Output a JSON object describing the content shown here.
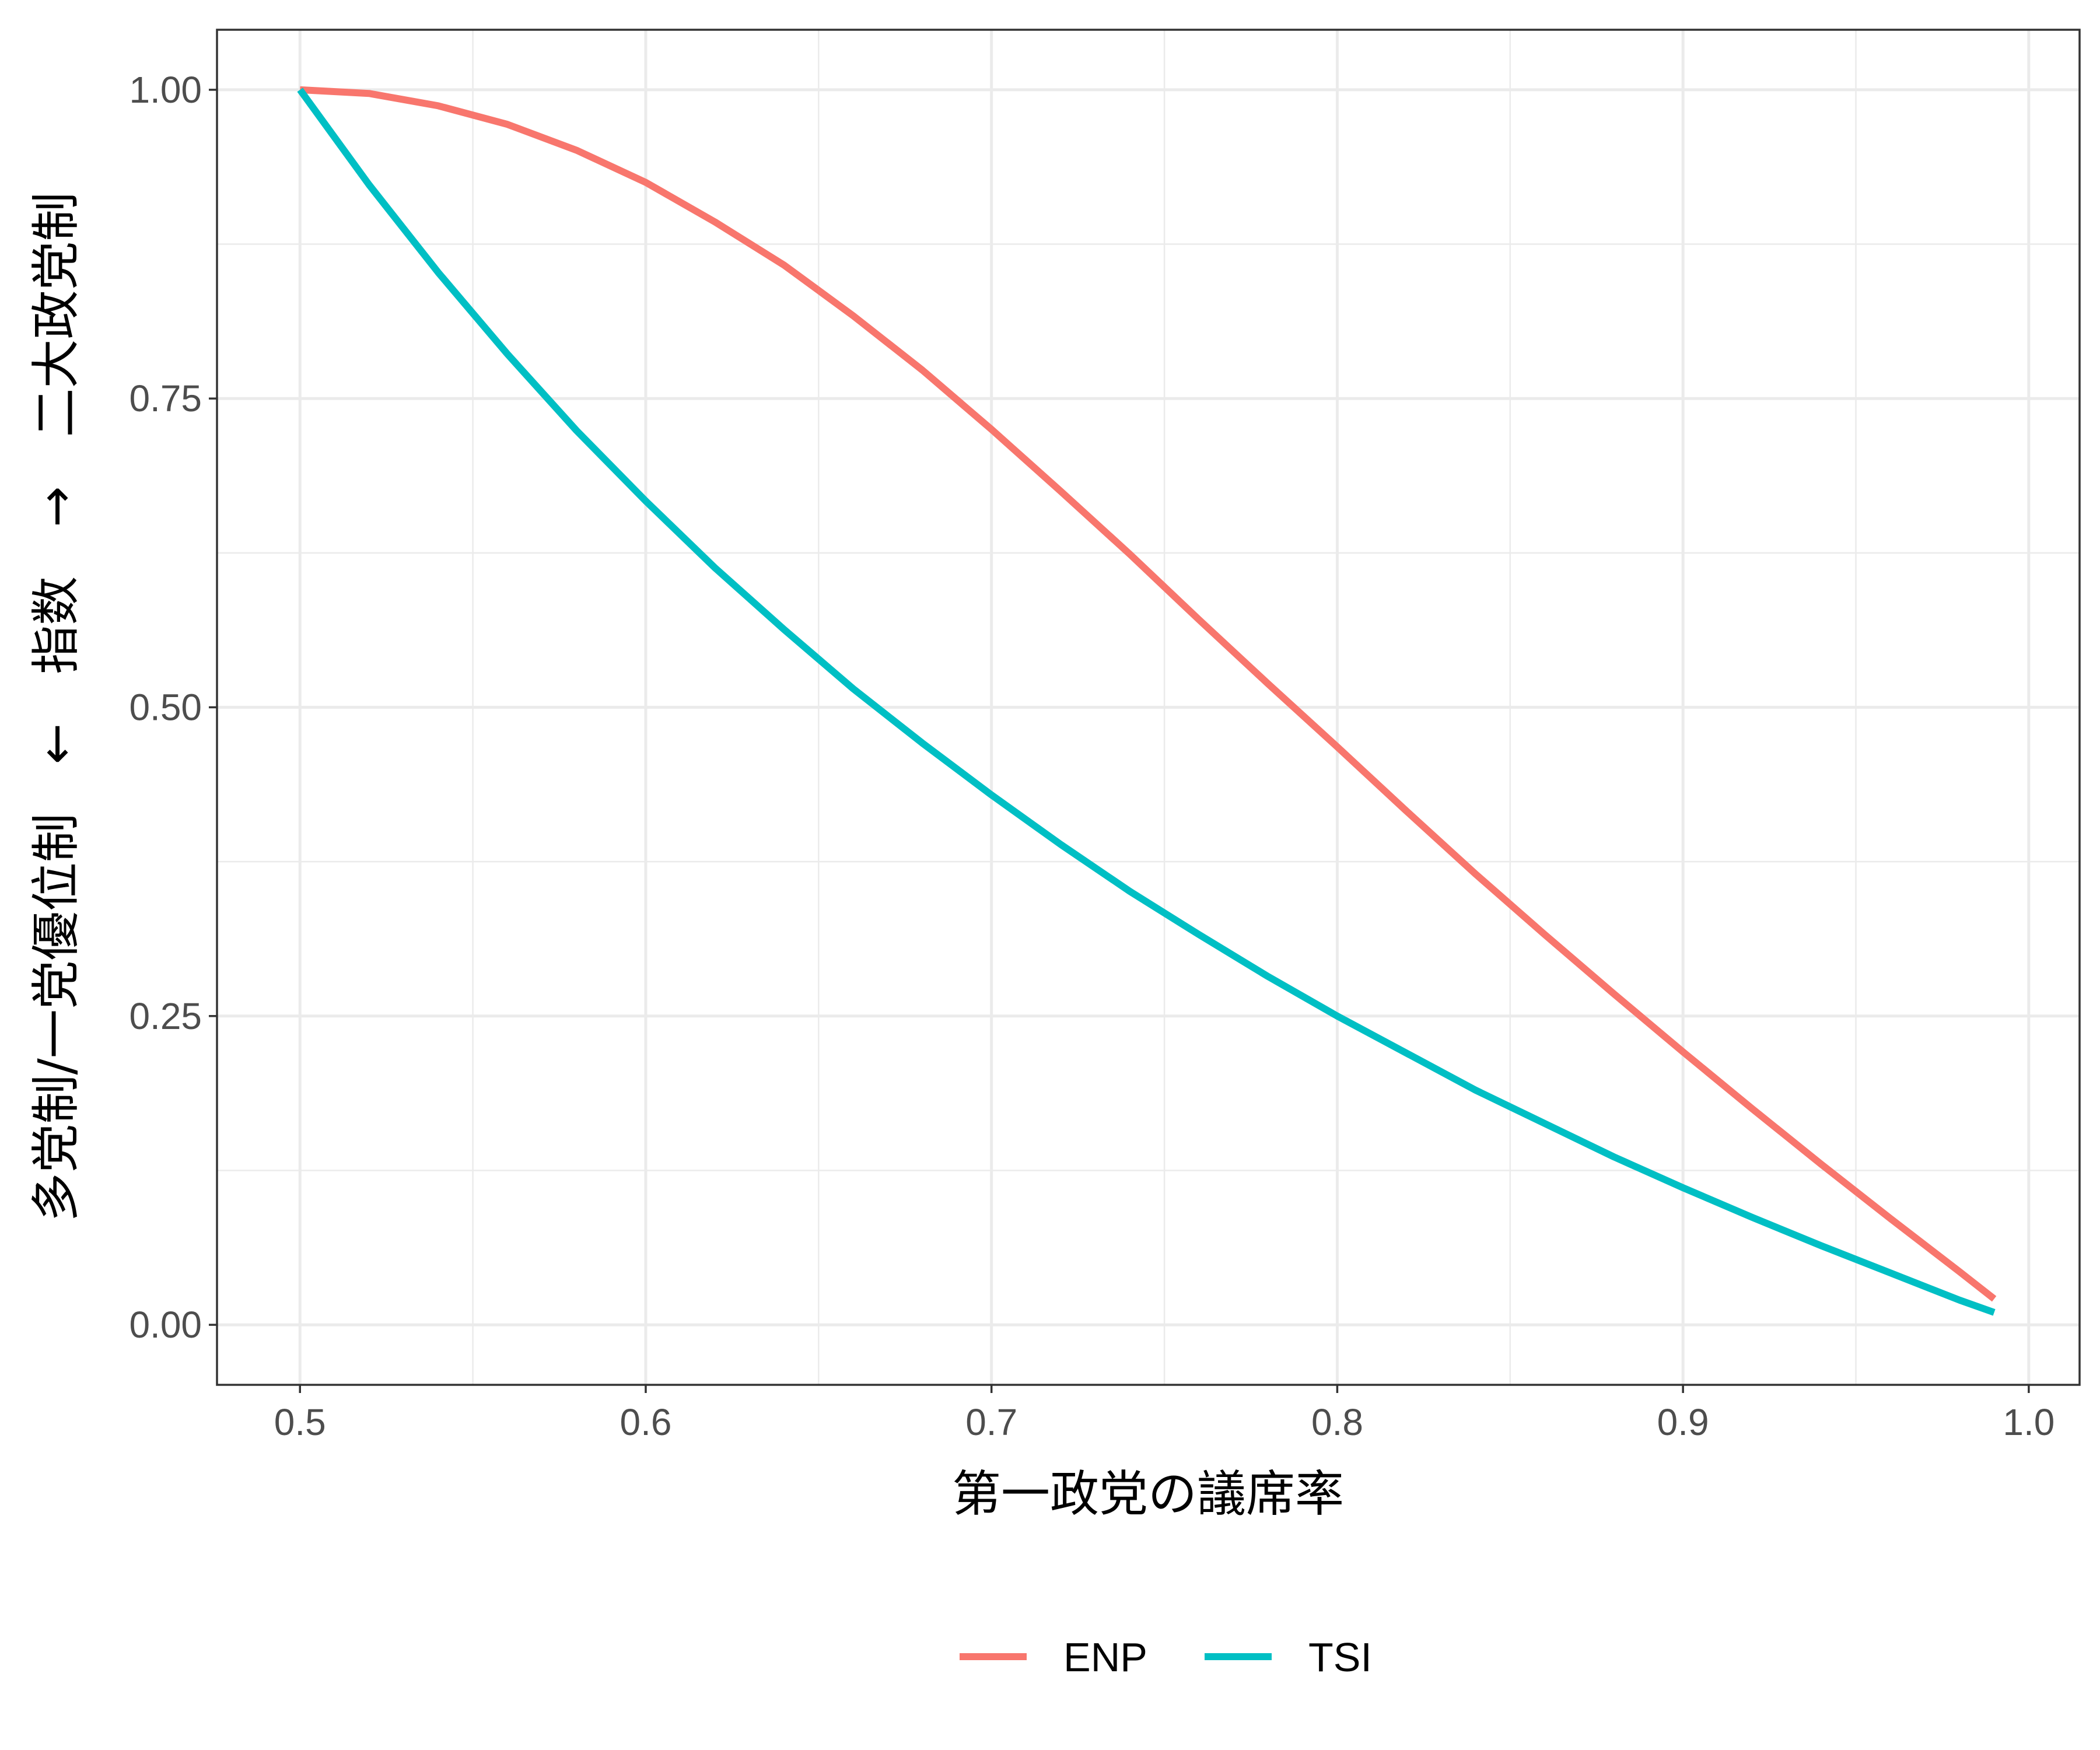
{
  "chart_data": {
    "type": "line",
    "title": "",
    "xlabel": "第一政党の議席率",
    "ylabel": "多党制/一党優位制　←　指数　→　二大政党制",
    "xlim": [
      0.476,
      1.0147
    ],
    "ylim": [
      -0.0486,
      1.0486
    ],
    "x_ticks": [
      0.5,
      0.6,
      0.7,
      0.8,
      0.9,
      1.0
    ],
    "x_tick_labels": [
      "0.5",
      "0.6",
      "0.7",
      "0.8",
      "0.9",
      "1.0"
    ],
    "y_ticks": [
      0.0,
      0.25,
      0.5,
      0.75,
      1.0
    ],
    "y_tick_labels": [
      "0.00",
      "0.25",
      "0.50",
      "0.75",
      "1.00"
    ],
    "grid": true,
    "legend_position": "bottom",
    "series": [
      {
        "name": "ENP",
        "color": "#F8766D",
        "x": [
          0.5,
          0.52,
          0.54,
          0.56,
          0.58,
          0.6,
          0.62,
          0.64,
          0.66,
          0.68,
          0.7,
          0.72,
          0.74,
          0.76,
          0.78,
          0.8,
          0.82,
          0.84,
          0.86,
          0.88,
          0.9,
          0.92,
          0.94,
          0.96,
          0.98,
          0.99
        ],
        "y": [
          1.0,
          0.997,
          0.987,
          0.972,
          0.951,
          0.925,
          0.893,
          0.858,
          0.817,
          0.773,
          0.725,
          0.675,
          0.624,
          0.571,
          0.519,
          0.468,
          0.416,
          0.365,
          0.316,
          0.268,
          0.221,
          0.175,
          0.13,
          0.086,
          0.043,
          0.021
        ]
      },
      {
        "name": "TSI",
        "color": "#00BFC4",
        "x": [
          0.5,
          0.52,
          0.54,
          0.56,
          0.58,
          0.6,
          0.62,
          0.64,
          0.66,
          0.68,
          0.7,
          0.72,
          0.74,
          0.76,
          0.78,
          0.8,
          0.82,
          0.84,
          0.86,
          0.88,
          0.9,
          0.92,
          0.94,
          0.96,
          0.98,
          0.99
        ],
        "y": [
          1.0,
          0.923,
          0.852,
          0.786,
          0.724,
          0.667,
          0.613,
          0.563,
          0.515,
          0.471,
          0.429,
          0.389,
          0.351,
          0.316,
          0.282,
          0.25,
          0.22,
          0.19,
          0.163,
          0.136,
          0.111,
          0.087,
          0.064,
          0.042,
          0.02,
          0.01
        ]
      }
    ]
  }
}
